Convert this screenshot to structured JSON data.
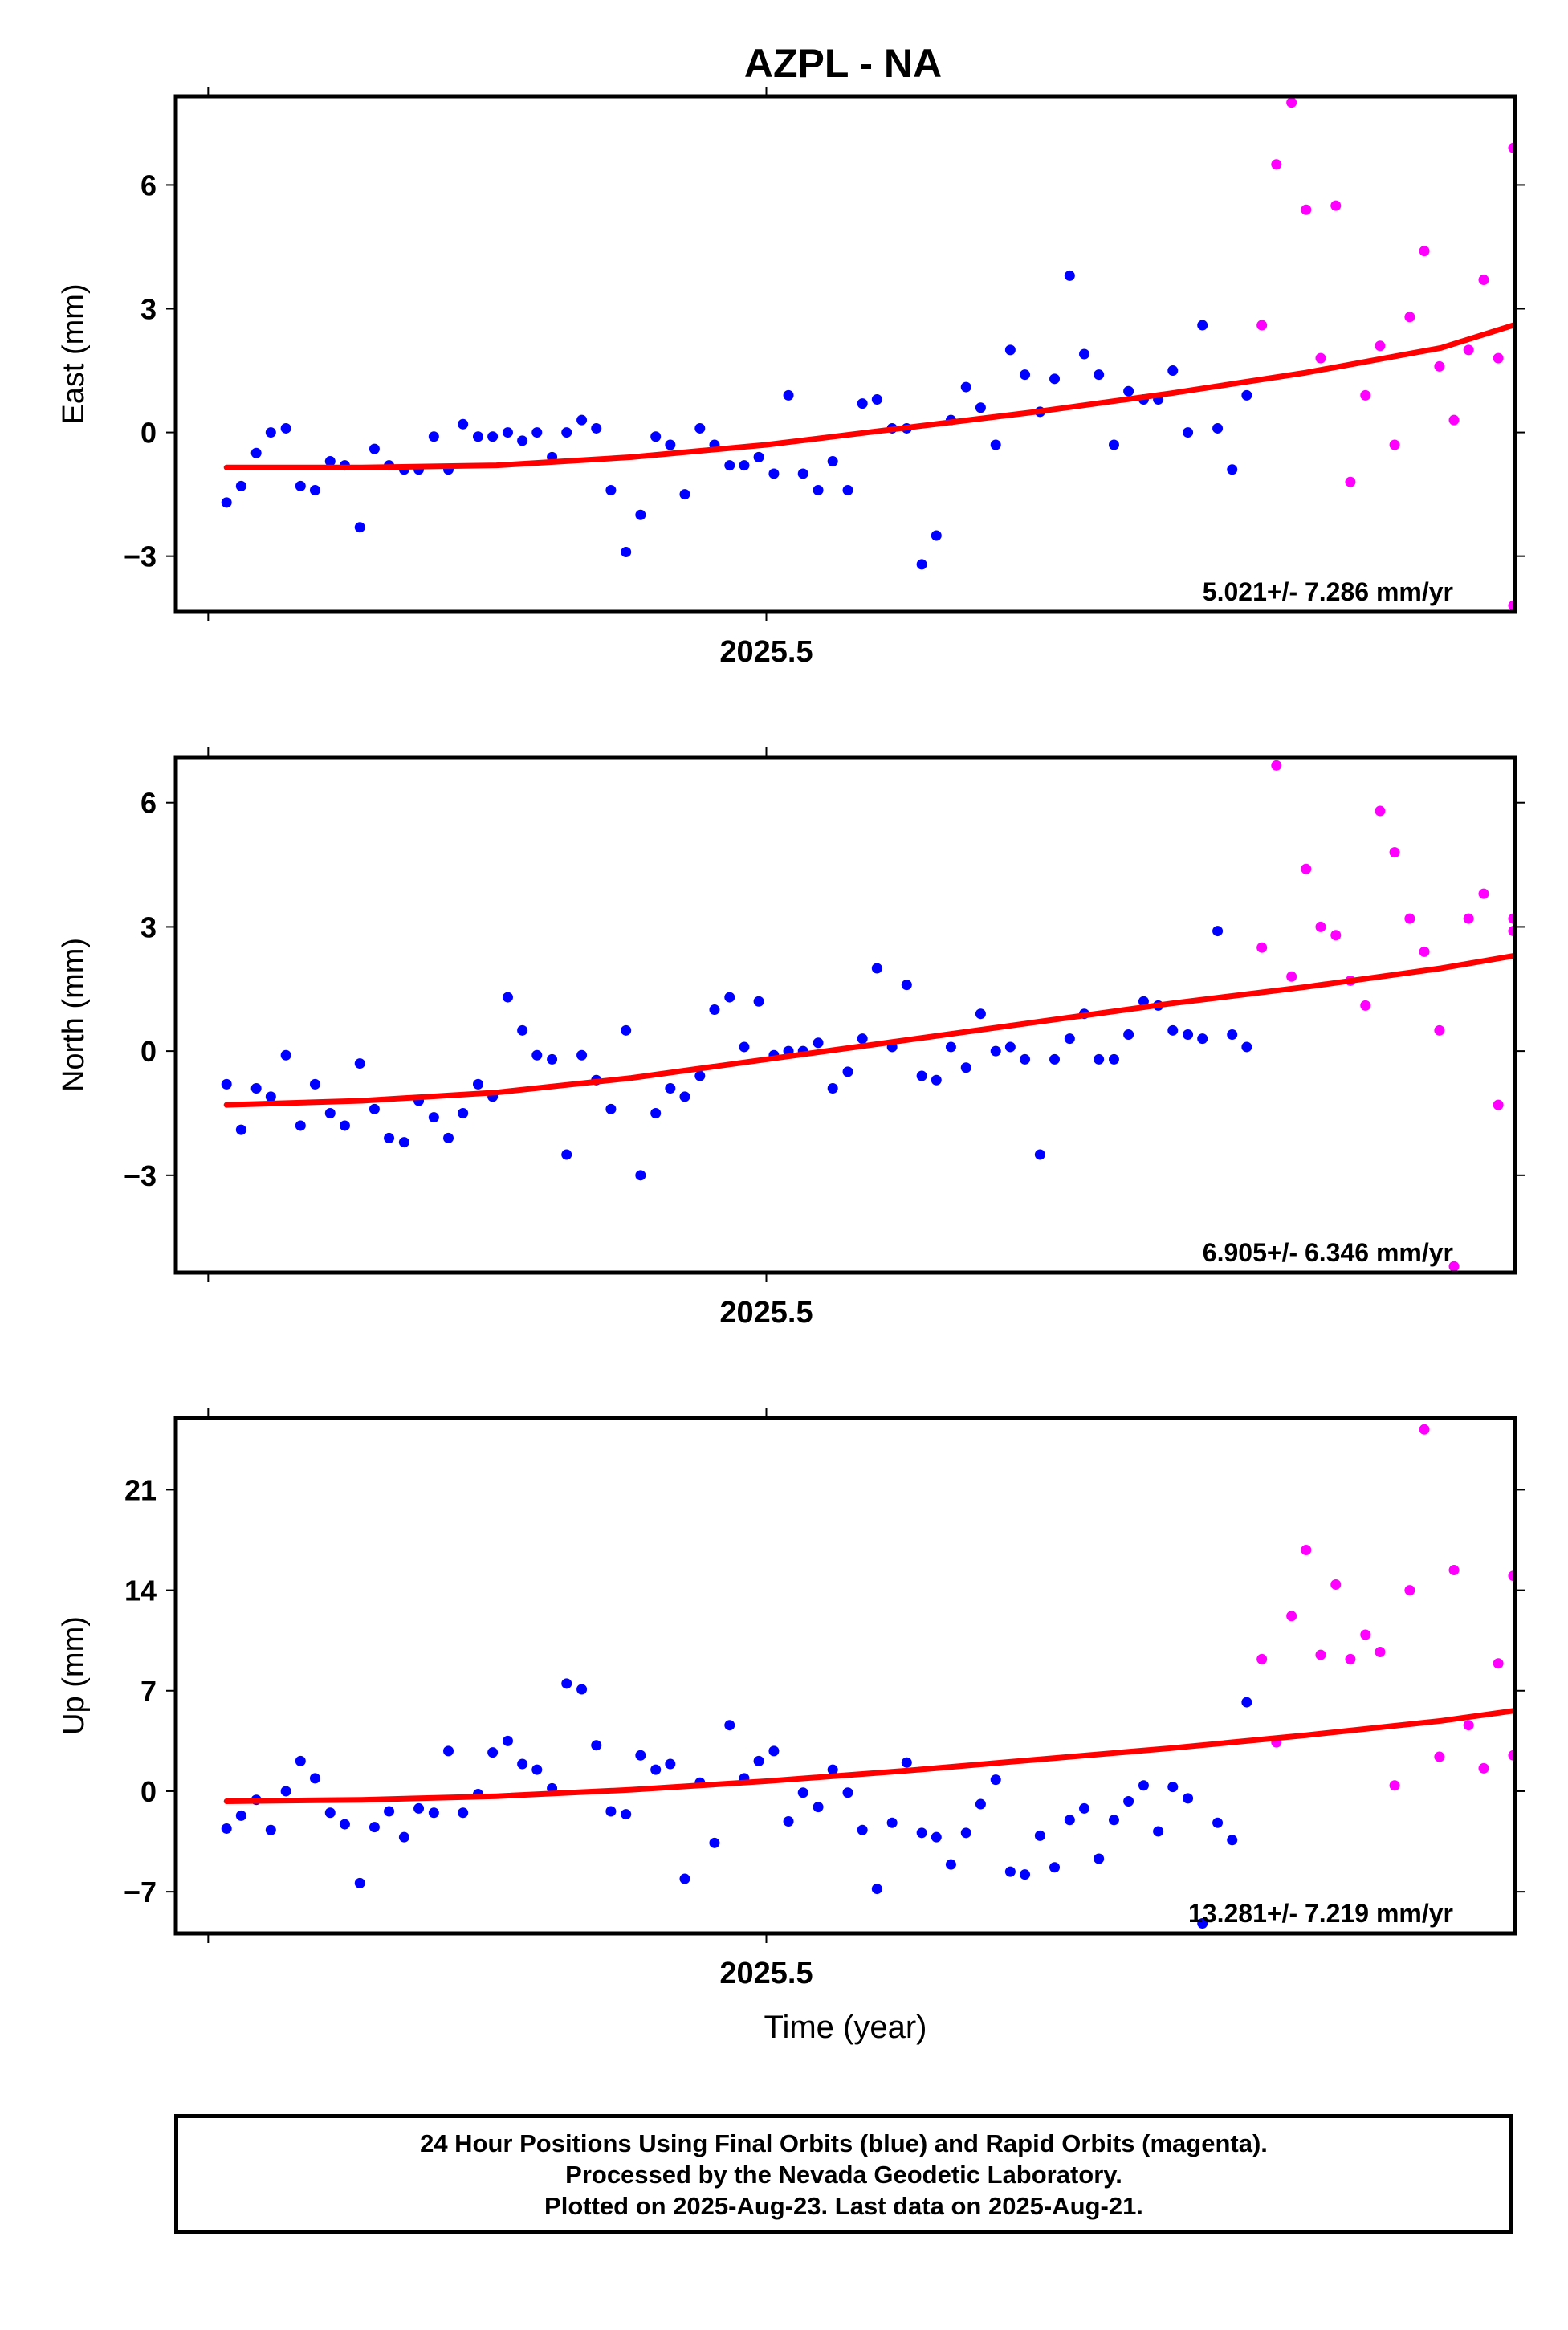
{
  "title": "AZPL - NA",
  "footer": {
    "line1": "24 Hour Positions Using Final Orbits (blue) and Rapid Orbits (magenta).",
    "line2": "Processed by the Nevada Geodetic Laboratory.",
    "line3": "Plotted on 2025-Aug-23. Last data on 2025-Aug-21."
  },
  "chart_data": [
    {
      "type": "scatter",
      "ylabel": "East (mm)",
      "xlabel": "",
      "xticks": [
        "2025.5"
      ],
      "yticks": [
        -3,
        0,
        3,
        6
      ],
      "xlim": [
        2025.3906,
        2025.6387
      ],
      "ylim": [
        -4.35,
        8.15
      ],
      "rate_label": "5.021+/- 7.286 mm/yr",
      "series": [
        {
          "color": "#0000ff",
          "x": [
            2025.4,
            2025.4027,
            2025.4055,
            2025.4082,
            2025.411,
            2025.4137,
            2025.4164,
            2025.4192,
            2025.4219,
            2025.4247,
            2025.4274,
            2025.4301,
            2025.4329,
            2025.4356,
            2025.4384,
            2025.4411,
            2025.4438,
            2025.4466,
            2025.4493,
            2025.4521,
            2025.4548,
            2025.4575,
            2025.4603,
            2025.463,
            2025.4658,
            2025.4685,
            2025.4712,
            2025.474,
            2025.4767,
            2025.4795,
            2025.4822,
            2025.4849,
            2025.4877,
            2025.4904,
            2025.4932,
            2025.4959,
            2025.4986,
            2025.5014,
            2025.5041,
            2025.5068,
            2025.5096,
            2025.5123,
            2025.5151,
            2025.5178,
            2025.5205,
            2025.5233,
            2025.526,
            2025.5288,
            2025.5315,
            2025.5342,
            2025.537,
            2025.5397,
            2025.5425,
            2025.5452,
            2025.5479,
            2025.5507,
            2025.5534,
            2025.5562,
            2025.5589,
            2025.5616,
            2025.5644,
            2025.5671,
            2025.5699,
            2025.5726,
            2025.5753,
            2025.5781,
            2025.5808
          ],
          "y": [
            -1.7,
            -1.3,
            -0.5,
            0.0,
            0.1,
            -1.3,
            -1.4,
            -0.7,
            -0.8,
            -2.3,
            -0.4,
            -0.8,
            -0.9,
            -0.9,
            -0.1,
            -0.9,
            0.2,
            -0.1,
            -0.1,
            0.0,
            -0.2,
            0.0,
            -0.6,
            0.0,
            0.3,
            0.1,
            -1.4,
            -2.9,
            -2.0,
            -0.1,
            -0.3,
            -1.5,
            0.1,
            -0.3,
            -0.8,
            -0.8,
            -0.6,
            -1.0,
            0.9,
            -1.0,
            -1.4,
            -0.7,
            -1.4,
            0.7,
            0.8,
            0.1,
            0.1,
            -3.2,
            -2.5,
            0.3,
            1.1,
            0.6,
            -0.3,
            2.0,
            1.4,
            0.5,
            1.3,
            3.8,
            1.9,
            1.4,
            -0.3,
            1.0,
            0.8,
            0.8,
            1.5,
            0.0,
            2.6
          ]
        },
        {
          "color": "#0000ff",
          "x": [
            2025.5836,
            2025.5863,
            2025.589
          ],
          "y": [
            0.1,
            -0.9,
            0.9
          ]
        },
        {
          "color": "#ff00ff",
          "x": [
            2025.5918,
            2025.5945,
            2025.5973,
            2025.6,
            2025.6027,
            2025.6055,
            2025.6082,
            2025.611,
            2025.6137,
            2025.6164,
            2025.6192,
            2025.6219,
            2025.6247,
            2025.6274,
            2025.6301,
            2025.6329,
            2025.6356,
            2025.6384
          ],
          "y": [
            2.6,
            6.5,
            8.0,
            5.4,
            1.8,
            5.5,
            -1.2,
            0.9,
            2.1,
            -0.3,
            2.8,
            4.4,
            1.6,
            0.3,
            2.0,
            3.7,
            1.8,
            -4.2
          ]
        },
        {
          "color": "#ff00ff",
          "x": [
            2025.6384
          ],
          "y": [
            6.9
          ]
        }
      ],
      "trend": {
        "color": "#ff0000",
        "x": [
          2025.4,
          2025.425,
          2025.45,
          2025.475,
          2025.5,
          2025.525,
          2025.55,
          2025.575,
          2025.6,
          2025.625,
          2025.6384
        ],
        "y": [
          -0.85,
          -0.85,
          -0.8,
          -0.6,
          -0.3,
          0.1,
          0.5,
          0.95,
          1.45,
          2.05,
          2.6
        ]
      }
    },
    {
      "type": "scatter",
      "ylabel": "North (mm)",
      "xlabel": "",
      "xticks": [
        "2025.5"
      ],
      "yticks": [
        -3,
        0,
        3,
        6
      ],
      "xlim": [
        2025.3906,
        2025.6387
      ],
      "ylim": [
        -5.35,
        7.1
      ],
      "rate_label": "6.905+/- 6.346 mm/yr",
      "series": [
        {
          "color": "#0000ff",
          "x": [
            2025.4,
            2025.4027,
            2025.4055,
            2025.4082,
            2025.411,
            2025.4137,
            2025.4164,
            2025.4192,
            2025.4219,
            2025.4247,
            2025.4274,
            2025.4301,
            2025.4329,
            2025.4356,
            2025.4384,
            2025.4411,
            2025.4438,
            2025.4466,
            2025.4493,
            2025.4521,
            2025.4548,
            2025.4575,
            2025.4603,
            2025.463,
            2025.4658,
            2025.4685,
            2025.4712,
            2025.474,
            2025.4767,
            2025.4795,
            2025.4822,
            2025.4849,
            2025.4877,
            2025.4904,
            2025.4932,
            2025.4959,
            2025.4986,
            2025.5014,
            2025.5041,
            2025.5068,
            2025.5096,
            2025.5123,
            2025.5151,
            2025.5178,
            2025.5205,
            2025.5233,
            2025.526,
            2025.5288,
            2025.5315,
            2025.5342,
            2025.537,
            2025.5397,
            2025.5425,
            2025.5452,
            2025.5479,
            2025.5507,
            2025.5534,
            2025.5562,
            2025.5589,
            2025.5616,
            2025.5644,
            2025.5671,
            2025.5699,
            2025.5726,
            2025.5753,
            2025.5781,
            2025.5808,
            2025.5836,
            2025.5863,
            2025.589
          ],
          "y": [
            -0.8,
            -1.9,
            -0.9,
            -1.1,
            -0.1,
            -1.8,
            -0.8,
            -1.5,
            -1.8,
            -0.3,
            -1.4,
            -2.1,
            -2.2,
            -1.2,
            -1.6,
            -2.1,
            -1.5,
            -0.8,
            -1.1,
            1.3,
            0.5,
            -0.1,
            -0.2,
            -2.5,
            -0.1,
            -0.7,
            -1.4,
            0.5,
            -3.0,
            -1.5,
            -0.9,
            -1.1,
            -0.6,
            1.0,
            1.3,
            0.1,
            1.2,
            -0.1,
            0.0,
            0.0,
            0.2,
            -0.9,
            -0.5,
            0.3,
            2.0,
            0.1,
            1.6,
            -0.6,
            -0.7,
            0.1,
            -0.4,
            0.9,
            0.0,
            0.1,
            -0.2,
            -2.5,
            -0.2,
            0.3,
            0.9,
            -0.2,
            -0.2,
            0.4,
            1.2,
            1.1,
            0.5,
            0.4,
            0.3,
            2.9,
            0.4,
            0.1
          ]
        },
        {
          "color": "#ff00ff",
          "x": [
            2025.5918,
            2025.5945,
            2025.5973,
            2025.6,
            2025.6027,
            2025.6055,
            2025.6082,
            2025.611,
            2025.6137,
            2025.6164,
            2025.6192,
            2025.6219,
            2025.6247,
            2025.6274,
            2025.6301,
            2025.6329,
            2025.6356,
            2025.6384
          ],
          "y": [
            2.5,
            6.9,
            1.8,
            4.4,
            3.0,
            2.8,
            1.7,
            1.1,
            5.8,
            4.8,
            3.2,
            2.4,
            0.5,
            -5.2,
            3.2,
            3.8,
            -1.3,
            3.2
          ]
        },
        {
          "color": "#ff00ff",
          "x": [
            2025.6384
          ],
          "y": [
            2.9
          ]
        }
      ],
      "trend": {
        "color": "#ff0000",
        "x": [
          2025.4,
          2025.425,
          2025.45,
          2025.475,
          2025.5,
          2025.525,
          2025.55,
          2025.575,
          2025.6,
          2025.625,
          2025.6384
        ],
        "y": [
          -1.3,
          -1.2,
          -1.0,
          -0.65,
          -0.2,
          0.25,
          0.7,
          1.15,
          1.55,
          2.0,
          2.3
        ]
      }
    },
    {
      "type": "scatter",
      "ylabel": "Up (mm)",
      "xlabel": "Time (year)",
      "xticks": [
        "2025.5"
      ],
      "yticks": [
        -7,
        0,
        7,
        14,
        21
      ],
      "xlim": [
        2025.3906,
        2025.6387
      ],
      "ylim": [
        -9.9,
        26.0
      ],
      "rate_label": "13.281+/- 7.219 mm/yr",
      "series": [
        {
          "color": "#0000ff",
          "x": [
            2025.4,
            2025.4027,
            2025.4055,
            2025.4082,
            2025.411,
            2025.4137,
            2025.4164,
            2025.4192,
            2025.4219,
            2025.4247,
            2025.4274,
            2025.4301,
            2025.4329,
            2025.4356,
            2025.4384,
            2025.4411,
            2025.4438,
            2025.4466,
            2025.4493,
            2025.4521,
            2025.4548,
            2025.4575,
            2025.4603,
            2025.463,
            2025.4658,
            2025.4685,
            2025.4712,
            2025.474,
            2025.4767,
            2025.4795,
            2025.4822,
            2025.4849,
            2025.4877,
            2025.4904,
            2025.4932,
            2025.4959,
            2025.4986,
            2025.5014,
            2025.5041,
            2025.5068,
            2025.5096,
            2025.5123,
            2025.5151,
            2025.5178,
            2025.5205,
            2025.5233,
            2025.526,
            2025.5288,
            2025.5315,
            2025.5342,
            2025.537,
            2025.5397,
            2025.5425,
            2025.5452,
            2025.5479,
            2025.5507,
            2025.5534,
            2025.5562,
            2025.5589,
            2025.5616,
            2025.5644,
            2025.5671,
            2025.5699,
            2025.5726,
            2025.5753,
            2025.5781,
            2025.5808,
            2025.5836,
            2025.5863
          ],
          "y": [
            -2.6,
            -1.7,
            -0.6,
            -2.7,
            0.0,
            2.1,
            0.9,
            -1.5,
            -2.3,
            -6.4,
            -2.5,
            -1.4,
            -3.2,
            -1.2,
            -1.5,
            2.8,
            -1.5,
            -0.2,
            2.7,
            3.5,
            1.9,
            1.5,
            0.2,
            7.5,
            7.1,
            3.2,
            -1.4,
            -1.6,
            2.5,
            1.5,
            1.9,
            -6.1,
            0.6,
            -3.6,
            4.6,
            0.9,
            2.1,
            2.8,
            -2.1,
            -0.1,
            -1.1,
            1.5,
            -0.1,
            -2.7,
            -6.8,
            -2.2,
            2.0,
            -2.9,
            -3.2,
            -5.1,
            -2.9,
            -0.9,
            0.8,
            -5.6,
            -5.8,
            -3.1,
            -5.3,
            -2.0,
            -1.2,
            -4.7,
            -2.0,
            -0.7,
            0.4,
            -2.8,
            0.3,
            -0.5,
            -9.2,
            -2.2,
            -3.4
          ]
        },
        {
          "color": "#0000ff",
          "x": [
            2025.589
          ],
          "y": [
            6.2
          ]
        },
        {
          "color": "#ff00ff",
          "x": [
            2025.5918,
            2025.5945,
            2025.5973,
            2025.6,
            2025.6027,
            2025.6055,
            2025.6082,
            2025.611,
            2025.6137,
            2025.6164,
            2025.6192,
            2025.6219,
            2025.6247,
            2025.6274,
            2025.6301,
            2025.6329,
            2025.6356,
            2025.6384
          ],
          "y": [
            9.2,
            3.4,
            12.2,
            16.8,
            9.5,
            14.4,
            9.2,
            10.9,
            9.7,
            0.4,
            14.0,
            25.2,
            2.4,
            15.4,
            4.6,
            1.6,
            8.9,
            15.0
          ]
        },
        {
          "color": "#ff00ff",
          "x": [
            2025.6384
          ],
          "y": [
            2.5
          ]
        }
      ],
      "trend": {
        "color": "#ff0000",
        "x": [
          2025.4,
          2025.425,
          2025.45,
          2025.475,
          2025.5,
          2025.525,
          2025.55,
          2025.575,
          2025.6,
          2025.625,
          2025.6384
        ],
        "y": [
          -0.7,
          -0.6,
          -0.35,
          0.1,
          0.7,
          1.4,
          2.2,
          3.0,
          3.9,
          4.9,
          5.6
        ]
      }
    }
  ]
}
